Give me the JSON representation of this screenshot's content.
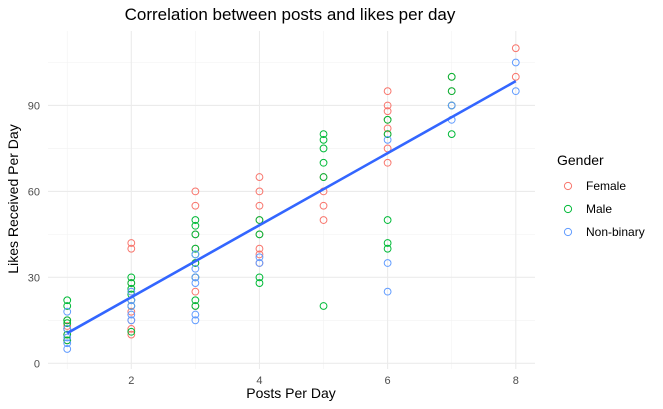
{
  "chart_data": {
    "type": "scatter",
    "title": "Correlation between posts and likes per day",
    "xlabel": "Posts Per Day",
    "ylabel": "Likes Received Per Day",
    "xlim": [
      0.7,
      8.3
    ],
    "ylim": [
      -2,
      116
    ],
    "xticks": [
      2,
      4,
      6,
      8
    ],
    "yticks": [
      0,
      30,
      60,
      90
    ],
    "grid": true,
    "legend_position": "right",
    "legend_title": "Gender",
    "colors": {
      "Female": "#F8766D",
      "Male": "#00BA38",
      "Non-binary": "#619CFF",
      "fit": "#3366FF"
    },
    "series": [
      {
        "name": "Female",
        "points": [
          [
            1,
            8
          ],
          [
            1,
            10
          ],
          [
            1,
            12
          ],
          [
            1,
            13
          ],
          [
            1,
            15
          ],
          [
            2,
            10
          ],
          [
            2,
            12
          ],
          [
            2,
            15
          ],
          [
            2,
            18
          ],
          [
            2,
            20
          ],
          [
            2,
            22
          ],
          [
            2,
            25
          ],
          [
            2,
            28
          ],
          [
            2,
            40
          ],
          [
            2,
            42
          ],
          [
            3,
            20
          ],
          [
            3,
            25
          ],
          [
            3,
            30
          ],
          [
            3,
            35
          ],
          [
            3,
            40
          ],
          [
            3,
            45
          ],
          [
            3,
            55
          ],
          [
            3,
            60
          ],
          [
            4,
            35
          ],
          [
            4,
            38
          ],
          [
            4,
            40
          ],
          [
            4,
            45
          ],
          [
            4,
            50
          ],
          [
            4,
            55
          ],
          [
            4,
            60
          ],
          [
            4,
            65
          ],
          [
            5,
            50
          ],
          [
            5,
            55
          ],
          [
            5,
            60
          ],
          [
            5,
            65
          ],
          [
            6,
            70
          ],
          [
            6,
            75
          ],
          [
            6,
            80
          ],
          [
            6,
            82
          ],
          [
            6,
            85
          ],
          [
            6,
            88
          ],
          [
            6,
            90
          ],
          [
            6,
            95
          ],
          [
            7,
            90
          ],
          [
            7,
            95
          ],
          [
            7,
            100
          ],
          [
            8,
            100
          ],
          [
            8,
            110
          ]
        ]
      },
      {
        "name": "Male",
        "points": [
          [
            1,
            8
          ],
          [
            1,
            10
          ],
          [
            1,
            12
          ],
          [
            1,
            14
          ],
          [
            1,
            15
          ],
          [
            1,
            20
          ],
          [
            1,
            22
          ],
          [
            2,
            11
          ],
          [
            2,
            20
          ],
          [
            2,
            22
          ],
          [
            2,
            24
          ],
          [
            2,
            26
          ],
          [
            2,
            28
          ],
          [
            2,
            30
          ],
          [
            3,
            20
          ],
          [
            3,
            22
          ],
          [
            3,
            30
          ],
          [
            3,
            35
          ],
          [
            3,
            38
          ],
          [
            3,
            40
          ],
          [
            3,
            45
          ],
          [
            3,
            48
          ],
          [
            3,
            50
          ],
          [
            4,
            28
          ],
          [
            4,
            30
          ],
          [
            4,
            45
          ],
          [
            4,
            50
          ],
          [
            5,
            20
          ],
          [
            5,
            65
          ],
          [
            5,
            70
          ],
          [
            5,
            75
          ],
          [
            5,
            78
          ],
          [
            5,
            80
          ],
          [
            6,
            40
          ],
          [
            6,
            42
          ],
          [
            6,
            50
          ],
          [
            6,
            80
          ],
          [
            6,
            85
          ],
          [
            7,
            80
          ],
          [
            7,
            90
          ],
          [
            7,
            95
          ],
          [
            7,
            100
          ]
        ]
      },
      {
        "name": "Non-binary",
        "points": [
          [
            1,
            5
          ],
          [
            1,
            7
          ],
          [
            1,
            9
          ],
          [
            1,
            12
          ],
          [
            1,
            18
          ],
          [
            2,
            15
          ],
          [
            2,
            17
          ],
          [
            2,
            20
          ],
          [
            2,
            22
          ],
          [
            2,
            25
          ],
          [
            3,
            15
          ],
          [
            3,
            17
          ],
          [
            3,
            28
          ],
          [
            3,
            30
          ],
          [
            3,
            33
          ],
          [
            3,
            38
          ],
          [
            4,
            35
          ],
          [
            4,
            37
          ],
          [
            6,
            25
          ],
          [
            6,
            35
          ],
          [
            6,
            78
          ],
          [
            7,
            85
          ],
          [
            7,
            90
          ],
          [
            8,
            95
          ],
          [
            8,
            105
          ]
        ]
      }
    ],
    "fit_line": {
      "x": [
        1,
        8
      ],
      "y": [
        10.5,
        98.5
      ]
    }
  }
}
